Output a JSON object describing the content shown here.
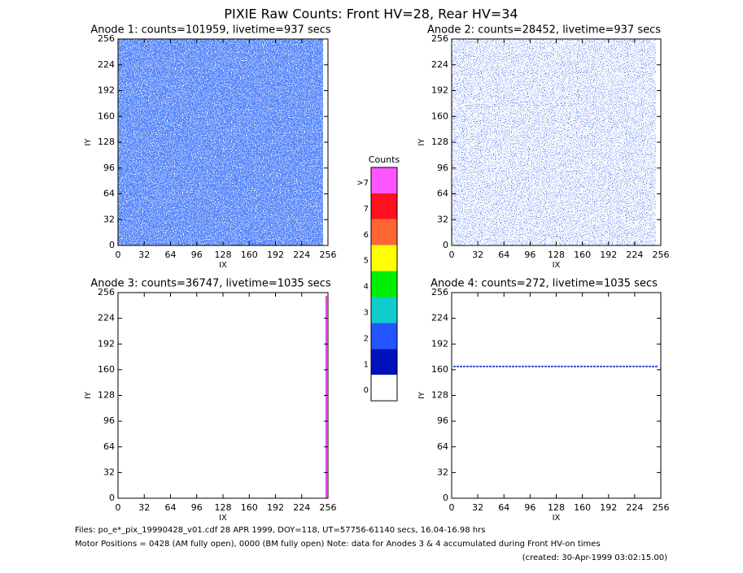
{
  "title": "PIXIE Raw Counts:  Front HV=28, Rear HV=34",
  "panels": [
    {
      "title": "Anode 1: counts=101959, livetime=937 secs",
      "xlabel": "IX",
      "ylabel": "IY",
      "xlim": [
        0,
        256
      ],
      "ylim": [
        0,
        256
      ],
      "xticks": [
        0,
        32,
        64,
        96,
        128,
        160,
        192,
        224,
        256
      ],
      "yticks": [
        0,
        32,
        64,
        96,
        128,
        160,
        192,
        224,
        256
      ]
    },
    {
      "title": "Anode 2: counts=28452, livetime=937 secs",
      "xlabel": "IX",
      "ylabel": "IY",
      "xlim": [
        0,
        256
      ],
      "ylim": [
        0,
        256
      ],
      "xticks": [
        0,
        32,
        64,
        96,
        128,
        160,
        192,
        224,
        256
      ],
      "yticks": [
        0,
        32,
        64,
        96,
        128,
        160,
        192,
        224,
        256
      ]
    },
    {
      "title": "Anode 3: counts=36747, livetime=1035 secs",
      "xlabel": "IX",
      "ylabel": "IY",
      "xlim": [
        0,
        256
      ],
      "ylim": [
        0,
        256
      ],
      "xticks": [
        0,
        32,
        64,
        96,
        128,
        160,
        192,
        224,
        256
      ],
      "yticks": [
        0,
        32,
        64,
        96,
        128,
        160,
        192,
        224,
        256
      ]
    },
    {
      "title": "Anode 4: counts=272, livetime=1035 secs",
      "xlabel": "IX",
      "ylabel": "IY",
      "xlim": [
        0,
        256
      ],
      "ylim": [
        0,
        256
      ],
      "xticks": [
        0,
        32,
        64,
        96,
        128,
        160,
        192,
        224,
        256
      ],
      "yticks": [
        0,
        32,
        64,
        96,
        128,
        160,
        192,
        224,
        256
      ]
    }
  ],
  "colorbar": {
    "title": "Counts",
    "labels": [
      ">7",
      "7",
      "6",
      "5",
      "4",
      "3",
      "2",
      "1",
      "0"
    ],
    "colors": [
      "#ff55ff",
      "#ff1020",
      "#ff6633",
      "#ffff00",
      "#00ee00",
      "#11cccc",
      "#2255ff",
      "#0011bb",
      "#ffffff"
    ]
  },
  "footer": [
    "Files: po_e*_pix_19990428_v01.cdf    28 APR 1999, DOY=118, UT=57756-61140 secs, 16.04-16.98 hrs",
    "Motor Positions = 0428 (AM fully open), 0000 (BM fully open)    Note: data for Anodes 3 & 4 accumulated during Front HV-on times",
    "(created: 30-Apr-1999 03:02:15.00)"
  ]
}
